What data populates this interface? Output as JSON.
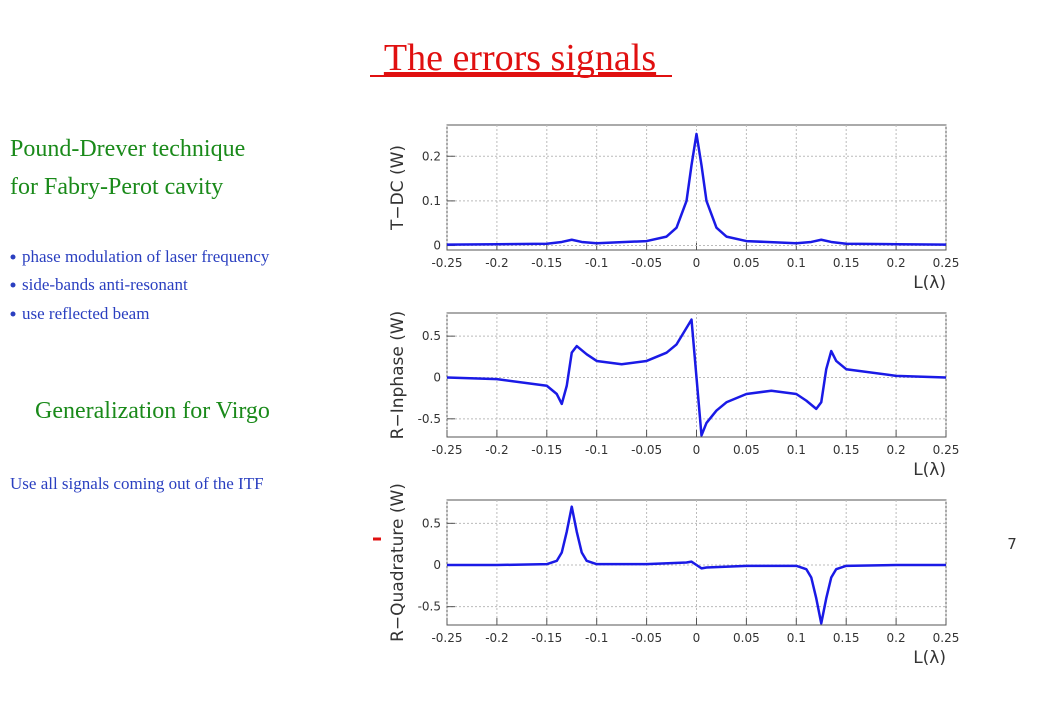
{
  "slide": {
    "title": "The errors signals",
    "heading": [
      "Pound-Drever technique",
      "for Fabry-Perot cavity"
    ],
    "bullets": [
      "phase modulation of laser frequency",
      "side-bands anti-resonant",
      "use reflected beam"
    ],
    "subheading": "Generalization for Virgo",
    "note": "Use all signals coming out of the ITF",
    "page_number": "7"
  },
  "chart_data": [
    {
      "type": "line",
      "y_label": "T−DC (W)",
      "x_label": "L(λ)",
      "color": "#1a1ae6",
      "grid": true,
      "x": [
        -0.25,
        -0.2,
        -0.15,
        -0.135,
        -0.125,
        -0.115,
        -0.1,
        -0.05,
        -0.03,
        -0.02,
        -0.01,
        -0.005,
        0,
        0.005,
        0.01,
        0.02,
        0.03,
        0.05,
        0.1,
        0.115,
        0.125,
        0.135,
        0.15,
        0.2,
        0.25
      ],
      "values": [
        0.002,
        0.003,
        0.004,
        0.008,
        0.013,
        0.008,
        0.005,
        0.01,
        0.02,
        0.04,
        0.1,
        0.18,
        0.25,
        0.18,
        0.1,
        0.04,
        0.02,
        0.01,
        0.005,
        0.008,
        0.013,
        0.008,
        0.004,
        0.003,
        0.002
      ],
      "xlim": [
        -0.25,
        0.25
      ],
      "ylim": [
        -0.01,
        0.27
      ],
      "xticks": [
        -0.25,
        -0.2,
        -0.15,
        -0.1,
        -0.05,
        0,
        0.05,
        0.1,
        0.15,
        0.2,
        0.25
      ],
      "yticks": [
        0,
        0.1,
        0.2
      ]
    },
    {
      "type": "line",
      "y_label": "R−Inphase (W)",
      "x_label": "L(λ)",
      "color": "#1a1ae6",
      "grid": true,
      "x": [
        -0.25,
        -0.2,
        -0.15,
        -0.14,
        -0.135,
        -0.13,
        -0.125,
        -0.12,
        -0.11,
        -0.1,
        -0.075,
        -0.05,
        -0.03,
        -0.02,
        -0.01,
        -0.005,
        0,
        0.005,
        0.01,
        0.02,
        0.03,
        0.05,
        0.075,
        0.1,
        0.11,
        0.12,
        0.125,
        0.13,
        0.135,
        0.14,
        0.15,
        0.2,
        0.25
      ],
      "values": [
        0,
        -0.02,
        -0.1,
        -0.2,
        -0.32,
        -0.1,
        0.3,
        0.38,
        0.28,
        0.2,
        0.16,
        0.2,
        0.3,
        0.4,
        0.6,
        0.7,
        0,
        -0.7,
        -0.55,
        -0.4,
        -0.3,
        -0.2,
        -0.16,
        -0.2,
        -0.28,
        -0.38,
        -0.3,
        0.1,
        0.32,
        0.2,
        0.1,
        0.02,
        0
      ],
      "xlim": [
        -0.25,
        0.25
      ],
      "ylim": [
        -0.72,
        0.78
      ],
      "xticks": [
        -0.25,
        -0.2,
        -0.15,
        -0.1,
        -0.05,
        0,
        0.05,
        0.1,
        0.15,
        0.2,
        0.25
      ],
      "yticks": [
        -0.5,
        0,
        0.5
      ]
    },
    {
      "type": "line",
      "y_label": "R−Quadrature (W)",
      "x_label": "L(λ)",
      "color": "#1a1ae6",
      "grid": true,
      "x": [
        -0.25,
        -0.2,
        -0.15,
        -0.14,
        -0.135,
        -0.13,
        -0.125,
        -0.12,
        -0.115,
        -0.11,
        -0.1,
        -0.05,
        -0.01,
        -0.005,
        0,
        0.005,
        0.01,
        0.05,
        0.1,
        0.11,
        0.115,
        0.12,
        0.125,
        0.13,
        0.135,
        0.14,
        0.15,
        0.2,
        0.25
      ],
      "values": [
        0,
        0,
        0.01,
        0.05,
        0.15,
        0.4,
        0.7,
        0.4,
        0.15,
        0.05,
        0.01,
        0.01,
        0.03,
        0.04,
        0,
        -0.04,
        -0.03,
        -0.01,
        -0.01,
        -0.05,
        -0.15,
        -0.4,
        -0.7,
        -0.4,
        -0.15,
        -0.05,
        -0.01,
        0,
        0
      ],
      "xlim": [
        -0.25,
        0.25
      ],
      "ylim": [
        -0.72,
        0.78
      ],
      "xticks": [
        -0.25,
        -0.2,
        -0.15,
        -0.1,
        -0.05,
        0,
        0.05,
        0.1,
        0.15,
        0.2,
        0.25
      ],
      "yticks": [
        -0.5,
        0,
        0.5
      ]
    }
  ]
}
